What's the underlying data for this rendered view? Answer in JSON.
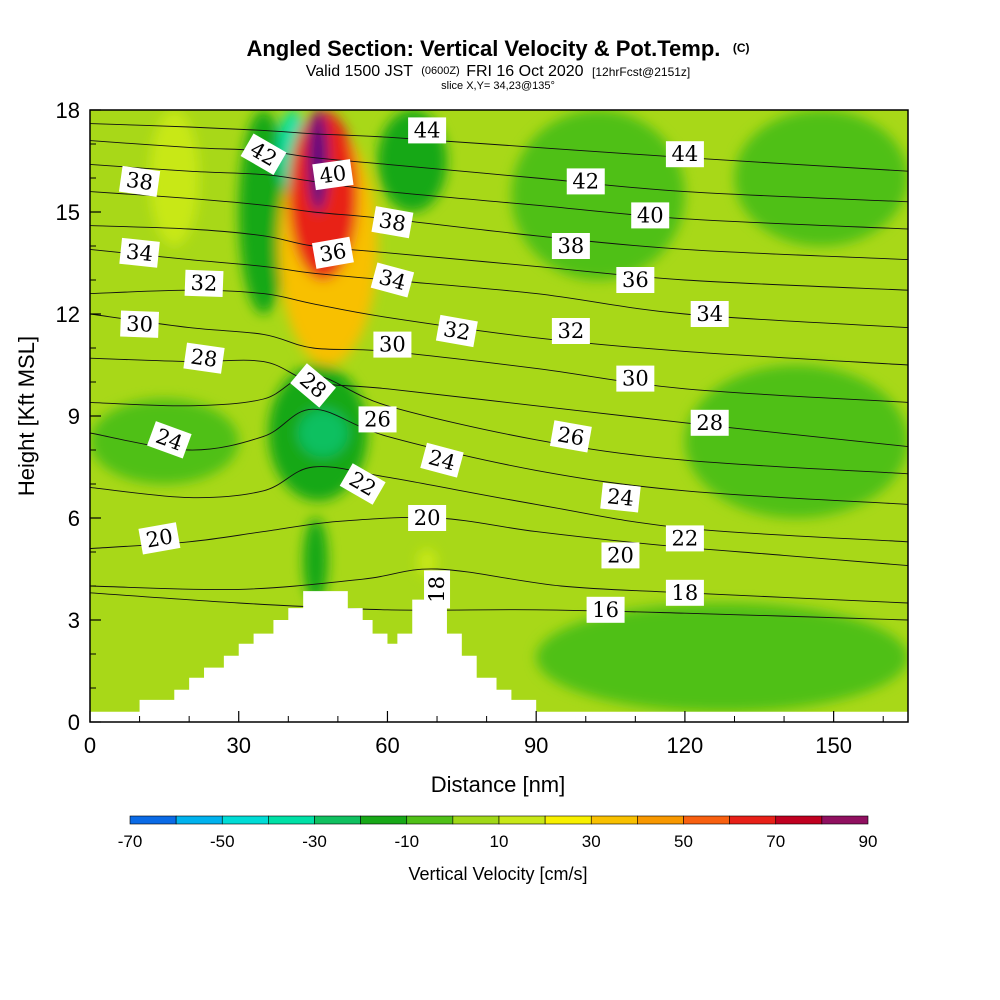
{
  "header": {
    "title": "Angled Section: Vertical Velocity & Pot.Temp.",
    "title_unit": "(C)",
    "line2_a": "Valid 1500 JST",
    "line2_b": "(0600Z)",
    "line2_c": "FRI 16 Oct 2020",
    "line2_d": "[12hrFcst@2151z]",
    "line3": "slice X,Y= 34,23@135°"
  },
  "chart_data": {
    "type": "heatmap",
    "title": "Angled Section: Vertical Velocity & Pot.Temp.",
    "xlabel": "Distance [nm]",
    "ylabel": "Height [Kft MSL]",
    "xlim": [
      0,
      165
    ],
    "ylim": [
      0,
      18
    ],
    "xticks": [
      0,
      30,
      60,
      90,
      120,
      150
    ],
    "yticks": [
      0,
      3,
      6,
      9,
      12,
      15,
      18
    ],
    "grid": false,
    "colorbar": {
      "label": "Vertical Velocity [cm/s]",
      "ticks": [
        -70,
        -50,
        -30,
        -10,
        10,
        30,
        50,
        70,
        90
      ],
      "bounds": [
        -70,
        -60,
        -50,
        -40,
        -30,
        -20,
        -10,
        0,
        10,
        20,
        30,
        40,
        50,
        60,
        70,
        80,
        90
      ],
      "colors": [
        "#0018e8",
        "#0a6ae6",
        "#00b2ee",
        "#00dcd6",
        "#00e0a6",
        "#10c060",
        "#18a818",
        "#50c018",
        "#a0d818",
        "#c8e818",
        "#f8f000",
        "#f8c000",
        "#f89800",
        "#f86010",
        "#e82018",
        "#c00020",
        "#901060",
        "#580c80"
      ]
    },
    "terrain": [
      [
        0,
        0.3
      ],
      [
        10,
        0.3
      ],
      [
        10,
        0.65
      ],
      [
        17,
        0.65
      ],
      [
        17,
        0.95
      ],
      [
        20,
        0.95
      ],
      [
        20,
        1.3
      ],
      [
        23,
        1.3
      ],
      [
        23,
        1.6
      ],
      [
        27,
        1.6
      ],
      [
        27,
        1.95
      ],
      [
        30,
        1.95
      ],
      [
        30,
        2.3
      ],
      [
        33,
        2.3
      ],
      [
        33,
        2.6
      ],
      [
        37,
        2.6
      ],
      [
        37,
        3.0
      ],
      [
        40,
        3.0
      ],
      [
        40,
        3.35
      ],
      [
        43,
        3.35
      ],
      [
        43,
        3.85
      ],
      [
        52,
        3.85
      ],
      [
        52,
        3.35
      ],
      [
        55,
        3.35
      ],
      [
        55,
        3.0
      ],
      [
        57,
        3.0
      ],
      [
        57,
        2.6
      ],
      [
        60,
        2.6
      ],
      [
        60,
        2.3
      ],
      [
        62,
        2.3
      ],
      [
        62,
        2.6
      ],
      [
        65,
        2.6
      ],
      [
        65,
        3.6
      ],
      [
        72,
        3.6
      ],
      [
        72,
        2.6
      ],
      [
        75,
        2.6
      ],
      [
        75,
        1.95
      ],
      [
        78,
        1.95
      ],
      [
        78,
        1.3
      ],
      [
        82,
        1.3
      ],
      [
        82,
        0.95
      ],
      [
        85,
        0.95
      ],
      [
        85,
        0.65
      ],
      [
        90,
        0.65
      ],
      [
        90,
        0.3
      ],
      [
        165,
        0.3
      ]
    ],
    "theta_contours": [
      {
        "level": 16,
        "points": [
          [
            0,
            3.8
          ],
          [
            30,
            3.5
          ],
          [
            60,
            3.3
          ],
          [
            90,
            3.3
          ],
          [
            120,
            3.2
          ],
          [
            165,
            3.0
          ]
        ]
      },
      {
        "level": 18,
        "points": [
          [
            0,
            4.0
          ],
          [
            30,
            3.9
          ],
          [
            55,
            4.2
          ],
          [
            70,
            4.5
          ],
          [
            95,
            4.0
          ],
          [
            120,
            3.8
          ],
          [
            165,
            3.5
          ]
        ]
      },
      {
        "level": 20,
        "points": [
          [
            0,
            5.1
          ],
          [
            20,
            5.3
          ],
          [
            35,
            5.6
          ],
          [
            50,
            5.9
          ],
          [
            70,
            6.0
          ],
          [
            90,
            5.6
          ],
          [
            115,
            5.2
          ],
          [
            140,
            4.9
          ],
          [
            165,
            4.6
          ]
        ]
      },
      {
        "level": 22,
        "points": [
          [
            0,
            6.9
          ],
          [
            20,
            6.6
          ],
          [
            35,
            6.8
          ],
          [
            45,
            7.5
          ],
          [
            60,
            7.2
          ],
          [
            90,
            6.4
          ],
          [
            120,
            5.7
          ],
          [
            165,
            5.3
          ]
        ]
      },
      {
        "level": 24,
        "points": [
          [
            0,
            8.5
          ],
          [
            20,
            8.0
          ],
          [
            35,
            8.4
          ],
          [
            45,
            9.2
          ],
          [
            60,
            8.4
          ],
          [
            90,
            7.4
          ],
          [
            120,
            6.8
          ],
          [
            165,
            6.4
          ]
        ]
      },
      {
        "level": 26,
        "points": [
          [
            0,
            9.4
          ],
          [
            20,
            9.3
          ],
          [
            35,
            9.5
          ],
          [
            45,
            10.2
          ],
          [
            60,
            9.3
          ],
          [
            90,
            8.3
          ],
          [
            120,
            7.7
          ],
          [
            165,
            7.3
          ]
        ]
      },
      {
        "level": 28,
        "points": [
          [
            0,
            10.7
          ],
          [
            20,
            10.6
          ],
          [
            35,
            10.6
          ],
          [
            45,
            10.0
          ],
          [
            60,
            9.8
          ],
          [
            90,
            9.3
          ],
          [
            120,
            8.8
          ],
          [
            165,
            8.1
          ]
        ]
      },
      {
        "level": 30,
        "points": [
          [
            0,
            12.0
          ],
          [
            20,
            11.6
          ],
          [
            35,
            11.4
          ],
          [
            45,
            11.0
          ],
          [
            60,
            10.9
          ],
          [
            90,
            10.4
          ],
          [
            120,
            9.8
          ],
          [
            165,
            9.4
          ]
        ]
      },
      {
        "level": 32,
        "points": [
          [
            0,
            12.6
          ],
          [
            20,
            12.7
          ],
          [
            35,
            12.6
          ],
          [
            45,
            12.3
          ],
          [
            60,
            11.9
          ],
          [
            90,
            11.3
          ],
          [
            120,
            10.9
          ],
          [
            165,
            10.5
          ]
        ]
      },
      {
        "level": 34,
        "points": [
          [
            0,
            13.9
          ],
          [
            20,
            13.6
          ],
          [
            35,
            13.4
          ],
          [
            45,
            13.2
          ],
          [
            60,
            13.0
          ],
          [
            90,
            12.6
          ],
          [
            120,
            12.0
          ],
          [
            165,
            11.6
          ]
        ]
      },
      {
        "level": 36,
        "points": [
          [
            0,
            14.6
          ],
          [
            20,
            14.5
          ],
          [
            35,
            14.3
          ],
          [
            45,
            14.0
          ],
          [
            60,
            13.8
          ],
          [
            90,
            13.4
          ],
          [
            120,
            13.0
          ],
          [
            165,
            12.7
          ]
        ]
      },
      {
        "level": 38,
        "points": [
          [
            0,
            15.6
          ],
          [
            20,
            15.4
          ],
          [
            35,
            15.2
          ],
          [
            45,
            15.0
          ],
          [
            60,
            14.8
          ],
          [
            90,
            14.3
          ],
          [
            120,
            13.9
          ],
          [
            165,
            13.6
          ]
        ]
      },
      {
        "level": 40,
        "points": [
          [
            0,
            16.4
          ],
          [
            20,
            16.2
          ],
          [
            35,
            16.1
          ],
          [
            45,
            15.9
          ],
          [
            60,
            15.6
          ],
          [
            90,
            15.2
          ],
          [
            120,
            14.8
          ],
          [
            165,
            14.5
          ]
        ]
      },
      {
        "level": 42,
        "points": [
          [
            0,
            17.1
          ],
          [
            20,
            16.9
          ],
          [
            35,
            16.8
          ],
          [
            45,
            16.6
          ],
          [
            60,
            16.4
          ],
          [
            90,
            16.0
          ],
          [
            120,
            15.6
          ],
          [
            165,
            15.3
          ]
        ]
      },
      {
        "level": 44,
        "points": [
          [
            0,
            17.6
          ],
          [
            20,
            17.5
          ],
          [
            35,
            17.4
          ],
          [
            45,
            17.3
          ],
          [
            60,
            17.2
          ],
          [
            90,
            16.9
          ],
          [
            120,
            16.6
          ],
          [
            165,
            16.2
          ]
        ]
      }
    ],
    "contour_labels": [
      {
        "text": "38",
        "x": 10,
        "y": 15.9,
        "angle": 8
      },
      {
        "text": "34",
        "x": 10,
        "y": 13.8,
        "angle": 6
      },
      {
        "text": "30",
        "x": 10,
        "y": 11.7,
        "angle": 2
      },
      {
        "text": "32",
        "x": 23,
        "y": 12.9,
        "angle": 2
      },
      {
        "text": "28",
        "x": 23,
        "y": 10.7,
        "angle": 8
      },
      {
        "text": "24",
        "x": 16,
        "y": 8.3,
        "angle": 20
      },
      {
        "text": "20",
        "x": 14,
        "y": 5.4,
        "angle": -10
      },
      {
        "text": "42",
        "x": 35,
        "y": 16.7,
        "angle": 30
      },
      {
        "text": "40",
        "x": 49,
        "y": 16.1,
        "angle": -8
      },
      {
        "text": "36",
        "x": 49,
        "y": 13.8,
        "angle": -10
      },
      {
        "text": "28",
        "x": 45,
        "y": 9.9,
        "angle": 40
      },
      {
        "text": "38",
        "x": 61,
        "y": 14.7,
        "angle": 10
      },
      {
        "text": "34",
        "x": 61,
        "y": 13.0,
        "angle": 15
      },
      {
        "text": "30",
        "x": 61,
        "y": 11.1,
        "angle": 0
      },
      {
        "text": "26",
        "x": 58,
        "y": 8.9,
        "angle": 0
      },
      {
        "text": "22",
        "x": 55,
        "y": 7.0,
        "angle": 30
      },
      {
        "text": "44",
        "x": 68,
        "y": 17.4,
        "angle": 0
      },
      {
        "text": "32",
        "x": 74,
        "y": 11.5,
        "angle": 10
      },
      {
        "text": "24",
        "x": 71,
        "y": 7.7,
        "angle": 15
      },
      {
        "text": "20",
        "x": 68,
        "y": 6.0,
        "angle": 0
      },
      {
        "text": "18",
        "x": 70,
        "y": 3.9,
        "angle": -90
      },
      {
        "text": "42",
        "x": 100,
        "y": 15.9,
        "angle": 0
      },
      {
        "text": "38",
        "x": 97,
        "y": 14.0,
        "angle": 0
      },
      {
        "text": "32",
        "x": 97,
        "y": 11.5,
        "angle": 0
      },
      {
        "text": "26",
        "x": 97,
        "y": 8.4,
        "angle": 10
      },
      {
        "text": "20",
        "x": 107,
        "y": 4.9,
        "angle": 0
      },
      {
        "text": "16",
        "x": 104,
        "y": 3.3,
        "angle": 0
      },
      {
        "text": "24",
        "x": 107,
        "y": 6.6,
        "angle": 6
      },
      {
        "text": "40",
        "x": 113,
        "y": 14.9,
        "angle": 0
      },
      {
        "text": "36",
        "x": 110,
        "y": 13.0,
        "angle": 0
      },
      {
        "text": "30",
        "x": 110,
        "y": 10.1,
        "angle": 0
      },
      {
        "text": "44",
        "x": 120,
        "y": 16.7,
        "angle": 0
      },
      {
        "text": "34",
        "x": 125,
        "y": 12.0,
        "angle": 0
      },
      {
        "text": "28",
        "x": 125,
        "y": 8.8,
        "angle": 0
      },
      {
        "text": "22",
        "x": 120,
        "y": 5.4,
        "angle": 0
      },
      {
        "text": "18",
        "x": 120,
        "y": 3.8,
        "angle": 0
      }
    ],
    "velocity_features": [
      {
        "kind": "updraft-core",
        "value": 90,
        "x": [
          44,
          48
        ],
        "y": [
          15.0,
          18.0
        ]
      },
      {
        "kind": "updraft",
        "value": 60,
        "x": [
          40,
          54
        ],
        "y": [
          13.0,
          18.0
        ]
      },
      {
        "kind": "updraft",
        "value": 35,
        "x": [
          38,
          58
        ],
        "y": [
          10.5,
          17.5
        ]
      },
      {
        "kind": "updraft",
        "value": 15,
        "x": [
          12,
          22
        ],
        "y": [
          14.0,
          18.0
        ]
      },
      {
        "kind": "updraft",
        "value": 15,
        "x": [
          66,
          70
        ],
        "y": [
          4.3,
          5.1
        ]
      },
      {
        "kind": "downdraft-core",
        "value": -35,
        "x": [
          38,
          44
        ],
        "y": [
          15.5,
          18.0
        ]
      },
      {
        "kind": "downdraft",
        "value": -15,
        "x": [
          30,
          40
        ],
        "y": [
          12.0,
          18.0
        ]
      },
      {
        "kind": "downdraft-core",
        "value": -30,
        "x": [
          42,
          52
        ],
        "y": [
          7.8,
          9.2
        ]
      },
      {
        "kind": "downdraft",
        "value": -15,
        "x": [
          36,
          56
        ],
        "y": [
          6.5,
          10.5
        ]
      },
      {
        "kind": "downdraft",
        "value": -15,
        "x": [
          58,
          72
        ],
        "y": [
          15.0,
          18.0
        ]
      },
      {
        "kind": "downdraft",
        "value": -15,
        "x": [
          43,
          48
        ],
        "y": [
          3.5,
          6.0
        ]
      },
      {
        "kind": "weak-sink",
        "value": -5,
        "x": [
          90,
          165
        ],
        "y": [
          0.3,
          3.5
        ]
      },
      {
        "kind": "weak-sink",
        "value": -5,
        "x": [
          0,
          30
        ],
        "y": [
          7.0,
          9.5
        ]
      },
      {
        "kind": "weak-sink",
        "value": -5,
        "x": [
          120,
          165
        ],
        "y": [
          6.0,
          10.5
        ]
      },
      {
        "kind": "weak-sink",
        "value": -5,
        "x": [
          85,
          120
        ],
        "y": [
          13.0,
          18.0
        ]
      },
      {
        "kind": "weak-sink",
        "value": -5,
        "x": [
          130,
          165
        ],
        "y": [
          14.0,
          18.0
        ]
      }
    ]
  }
}
